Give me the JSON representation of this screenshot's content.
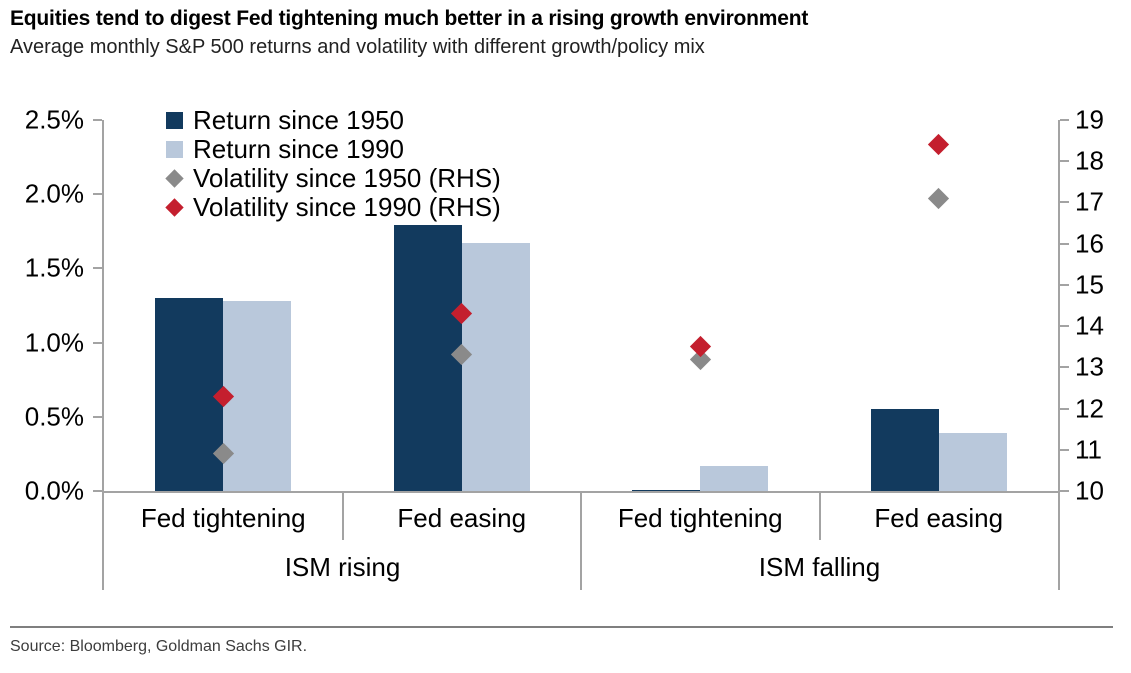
{
  "header": {
    "title": "Equities tend to digest Fed tightening much better in a rising growth environment",
    "subtitle": "Average monthly S&P 500 returns and volatility with different growth/policy mix"
  },
  "footer": {
    "source": "Source: Bloomberg, Goldman Sachs GIR."
  },
  "colors": {
    "navy": "#123A5E",
    "light_blue": "#B9C8DB",
    "red": "#C41F2E",
    "gray": "#8A8A8A",
    "axis_line": "#A3A3A3"
  },
  "chart_data": {
    "type": "bar",
    "title": "Equities tend to digest Fed tightening much better in a rising growth environment",
    "subtitle": "Average monthly S&P 500 returns and volatility with different growth/policy mix",
    "categories": [
      "Fed tightening",
      "Fed easing",
      "Fed tightening",
      "Fed easing"
    ],
    "group_labels_level2": [
      "ISM rising",
      "ISM falling"
    ],
    "legend_position": "top-left",
    "grid": false,
    "left_axis": {
      "lim": [
        0,
        2.5
      ],
      "ticks": [
        [
          0,
          "0.0%"
        ],
        [
          0.5,
          "0.5%"
        ],
        [
          1.0,
          "1.0%"
        ],
        [
          1.5,
          "1.5%"
        ],
        [
          2.0,
          "2.0%"
        ],
        [
          2.5,
          "2.5%"
        ]
      ]
    },
    "right_axis": {
      "lim": [
        10,
        19
      ],
      "ticks": [
        [
          10,
          "10"
        ],
        [
          11,
          "11"
        ],
        [
          12,
          "12"
        ],
        [
          13,
          "13"
        ],
        [
          14,
          "14"
        ],
        [
          15,
          "15"
        ],
        [
          16,
          "16"
        ],
        [
          17,
          "17"
        ],
        [
          18,
          "18"
        ],
        [
          19,
          "19"
        ]
      ]
    },
    "series": [
      {
        "name": "Return since 1950",
        "marker": "square",
        "axis": "left",
        "color_key": "navy",
        "values": [
          1.3,
          1.79,
          0.01,
          0.55
        ]
      },
      {
        "name": "Return since 1990",
        "marker": "square",
        "axis": "left",
        "color_key": "light_blue",
        "values": [
          1.28,
          1.67,
          0.17,
          0.39
        ]
      },
      {
        "name": "Volatility since 1950 (RHS)",
        "marker": "diamond",
        "axis": "right",
        "color_key": "gray",
        "values": [
          10.9,
          13.3,
          13.2,
          17.1
        ]
      },
      {
        "name": "Volatility since 1990 (RHS)",
        "marker": "diamond",
        "axis": "right",
        "color_key": "red",
        "values": [
          12.3,
          14.3,
          13.5,
          18.4
        ]
      }
    ]
  }
}
